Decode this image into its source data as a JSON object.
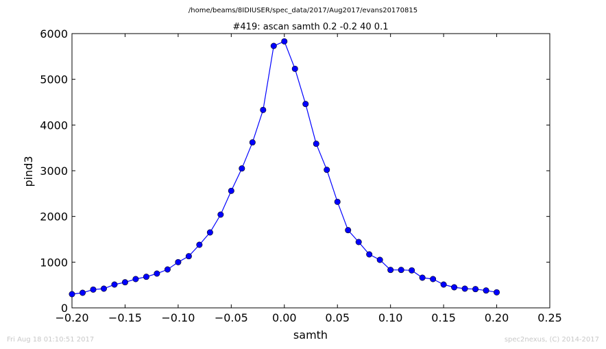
{
  "chart_data": {
    "type": "line",
    "suptitle": "/home/beams/8IDIUSER/spec_data/2017/Aug2017/evans20170815",
    "title": "#419: ascan  samth 0.2 -0.2  40 0.1",
    "xlabel": "samth",
    "ylabel": "pind3",
    "xlim": [
      -0.2,
      0.25
    ],
    "ylim": [
      0,
      6000
    ],
    "xticks": [
      -0.2,
      -0.15,
      -0.1,
      -0.05,
      0.0,
      0.05,
      0.1,
      0.15,
      0.2,
      0.25
    ],
    "xtick_labels": [
      "−0.20",
      "−0.15",
      "−0.10",
      "−0.05",
      "0.00",
      "0.05",
      "0.10",
      "0.15",
      "0.20",
      "0.25"
    ],
    "yticks": [
      0,
      1000,
      2000,
      3000,
      4000,
      5000,
      6000
    ],
    "ytick_labels": [
      "0",
      "1000",
      "2000",
      "3000",
      "4000",
      "5000",
      "6000"
    ],
    "grid": false,
    "marker": "circle",
    "line_color": "#0000ff",
    "x": [
      -0.2,
      -0.19,
      -0.18,
      -0.17,
      -0.16,
      -0.15,
      -0.14,
      -0.13,
      -0.12,
      -0.11,
      -0.1,
      -0.09,
      -0.08,
      -0.07,
      -0.06,
      -0.05,
      -0.04,
      -0.03,
      -0.02,
      -0.01,
      0.0,
      0.01,
      0.02,
      0.03,
      0.04,
      0.05,
      0.06,
      0.07,
      0.08,
      0.09,
      0.1,
      0.11,
      0.12,
      0.13,
      0.14,
      0.15,
      0.16,
      0.17,
      0.18,
      0.19,
      0.2
    ],
    "y": [
      300,
      330,
      400,
      420,
      510,
      560,
      630,
      680,
      750,
      840,
      1000,
      1130,
      1380,
      1650,
      2040,
      2560,
      3050,
      3620,
      4330,
      5730,
      5830,
      5230,
      4460,
      3590,
      3020,
      2320,
      1700,
      1440,
      1170,
      1050,
      830,
      830,
      820,
      660,
      630,
      510,
      450,
      420,
      410,
      380,
      340
    ]
  },
  "footer": {
    "timestamp": "Fri Aug 18 01:10:51 2017",
    "credit": "spec2nexus, (C) 2014-2017"
  }
}
